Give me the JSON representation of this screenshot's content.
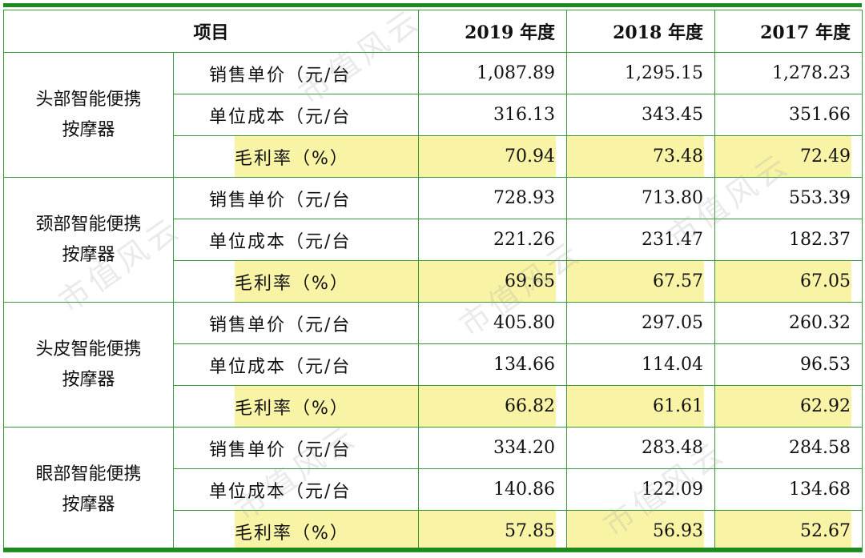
{
  "headers": {
    "item": "项目",
    "years": [
      "2019 年度",
      "2018 年度",
      "2017 年度"
    ]
  },
  "products": [
    {
      "name": "头部智能便携按摩器",
      "rows": [
        {
          "metric": "销售单价（元/台",
          "values": [
            "1,087.89",
            "1,295.15",
            "1,278.23"
          ]
        },
        {
          "metric": "单位成本（元/台",
          "values": [
            "316.13",
            "343.45",
            "351.66"
          ]
        },
        {
          "metric": "毛利率（%）",
          "values": [
            "70.94",
            "73.48",
            "72.49"
          ]
        }
      ]
    },
    {
      "name": "颈部智能便携按摩器",
      "rows": [
        {
          "metric": "销售单价（元/台",
          "values": [
            "728.93",
            "713.80",
            "553.39"
          ]
        },
        {
          "metric": "单位成本（元/台",
          "values": [
            "221.26",
            "231.47",
            "182.37"
          ]
        },
        {
          "metric": "毛利率（%）",
          "values": [
            "69.65",
            "67.57",
            "67.05"
          ]
        }
      ]
    },
    {
      "name": "头皮智能便携按摩器",
      "rows": [
        {
          "metric": "销售单价（元/台",
          "values": [
            "405.80",
            "297.05",
            "260.32"
          ]
        },
        {
          "metric": "单位成本（元/台",
          "values": [
            "134.66",
            "114.04",
            "96.53"
          ]
        },
        {
          "metric": "毛利率（%）",
          "values": [
            "66.82",
            "61.61",
            "62.92"
          ]
        }
      ]
    },
    {
      "name": "眼部智能便携按摩器",
      "rows": [
        {
          "metric": "销售单价（元/台",
          "values": [
            "334.20",
            "283.48",
            "284.58"
          ]
        },
        {
          "metric": "单位成本（元/台",
          "values": [
            "140.86",
            "122.09",
            "134.68"
          ]
        },
        {
          "metric": "毛利率（%）",
          "values": [
            "57.85",
            "56.93",
            "52.67"
          ]
        }
      ]
    }
  ],
  "watermark": "市值风云",
  "colors": {
    "border": "#3a9a3a",
    "rule": "#1e8a1e",
    "highlight": "#f9f3a6"
  }
}
